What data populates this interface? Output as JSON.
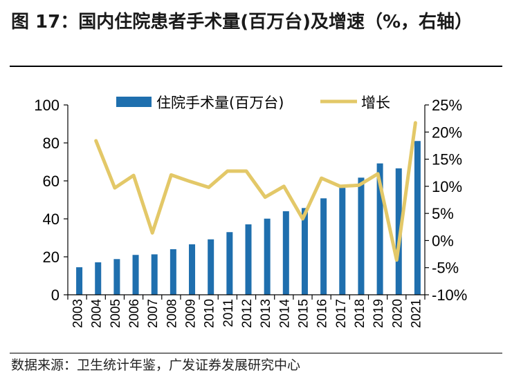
{
  "header": {
    "title": "图 17：国内住院患者手术量(百万台)及增速（%，右轴）"
  },
  "footer": {
    "source": "数据来源：卫生统计年鉴，广发证券发展研究中心"
  },
  "colors": {
    "bar": "#1f6fae",
    "line": "#e3c868"
  },
  "chart_data": {
    "type": "bar",
    "title": "",
    "categories": [
      "2003",
      "2004",
      "2005",
      "2006",
      "2007",
      "2008",
      "2009",
      "2010",
      "2011",
      "2012",
      "2013",
      "2014",
      "2015",
      "2016",
      "2017",
      "2018",
      "2019",
      "2020",
      "2021"
    ],
    "series": [
      {
        "name": "住院手术量(百万台)",
        "type": "bar",
        "axis": "left",
        "values": [
          14.5,
          17.1,
          18.8,
          21.0,
          21.3,
          24.0,
          26.6,
          29.2,
          33.0,
          37.1,
          40.1,
          44.0,
          45.7,
          50.8,
          56.3,
          61.7,
          69.2,
          66.6,
          81.0
        ]
      },
      {
        "name": "增长",
        "type": "line",
        "axis": "right",
        "values": [
          null,
          18.4,
          9.7,
          12.0,
          1.4,
          12.1,
          10.9,
          9.8,
          12.8,
          12.8,
          8.0,
          10.0,
          4.0,
          11.5,
          10.0,
          10.2,
          12.3,
          -3.6,
          21.7
        ]
      }
    ],
    "y_left": {
      "lim": [
        0,
        100
      ],
      "ticks": [
        "0",
        "20",
        "40",
        "60",
        "80",
        "100"
      ]
    },
    "y_right": {
      "lim": [
        -10,
        25
      ],
      "ticks": [
        "-10%",
        "-5%",
        "0%",
        "5%",
        "10%",
        "15%",
        "20%",
        "25%"
      ]
    },
    "legend": {
      "position": "top"
    },
    "grid": false
  }
}
